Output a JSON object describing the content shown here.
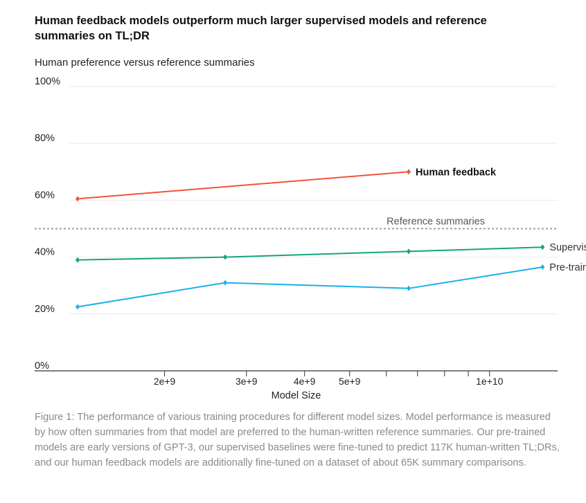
{
  "title": "Human feedback models outperform much larger supervised models and reference summaries on TL;DR",
  "caption": "Figure 1: The performance of various training procedures for different model sizes. Model performance is measured by how often summaries from that model are preferred to the human-written reference summaries. Our pre-trained models are early versions of GPT-3, our supervised baselines were fine-tuned to predict 117K human-written TL;DRs, and our human feedback models are additionally fine-tuned on a dataset of about 65K summary comparisons.",
  "chart_data": {
    "type": "line",
    "title": "Human feedback models outperform much larger supervised models and reference summaries on TL;DR",
    "ylabel": "Human preference versus reference summaries",
    "xlabel": "Model Size",
    "x_scale": "log",
    "xlim": [
      1300000000,
      15000000000
    ],
    "ylim": [
      0,
      100
    ],
    "y_ticks": [
      {
        "value": 0,
        "label": "0%"
      },
      {
        "value": 20,
        "label": "20%"
      },
      {
        "value": 40,
        "label": "40%"
      },
      {
        "value": 60,
        "label": "60%"
      },
      {
        "value": 80,
        "label": "80%"
      },
      {
        "value": 100,
        "label": "100%"
      }
    ],
    "x_ticks": [
      {
        "value": 2000000000,
        "label": "2e+9"
      },
      {
        "value": 3000000000,
        "label": "3e+9"
      },
      {
        "value": 4000000000,
        "label": "4e+9"
      },
      {
        "value": 5000000000,
        "label": "5e+9"
      },
      {
        "value": 6000000000,
        "label": ""
      },
      {
        "value": 7000000000,
        "label": ""
      },
      {
        "value": 8000000000,
        "label": ""
      },
      {
        "value": 9000000000,
        "label": ""
      },
      {
        "value": 10000000000,
        "label": "1e+10"
      }
    ],
    "grid": true,
    "reference_line": {
      "label": "Reference summaries",
      "value": 50,
      "color": "#9e9e9e"
    },
    "series": [
      {
        "name": "Human feedback",
        "color": "#f0523a",
        "bold": true,
        "x": [
          1300000000,
          6700000000
        ],
        "y": [
          60.5,
          70
        ]
      },
      {
        "name": "Supervised",
        "color": "#14a37f",
        "bold": false,
        "x": [
          1300000000,
          2700000000,
          6700000000,
          13000000000
        ],
        "y": [
          39,
          40,
          42,
          43.5
        ]
      },
      {
        "name": "Pre-trained",
        "color": "#18b2e6",
        "bold": false,
        "x": [
          1300000000,
          2700000000,
          6700000000,
          13000000000
        ],
        "y": [
          22.5,
          31,
          29,
          36.5
        ]
      }
    ]
  }
}
